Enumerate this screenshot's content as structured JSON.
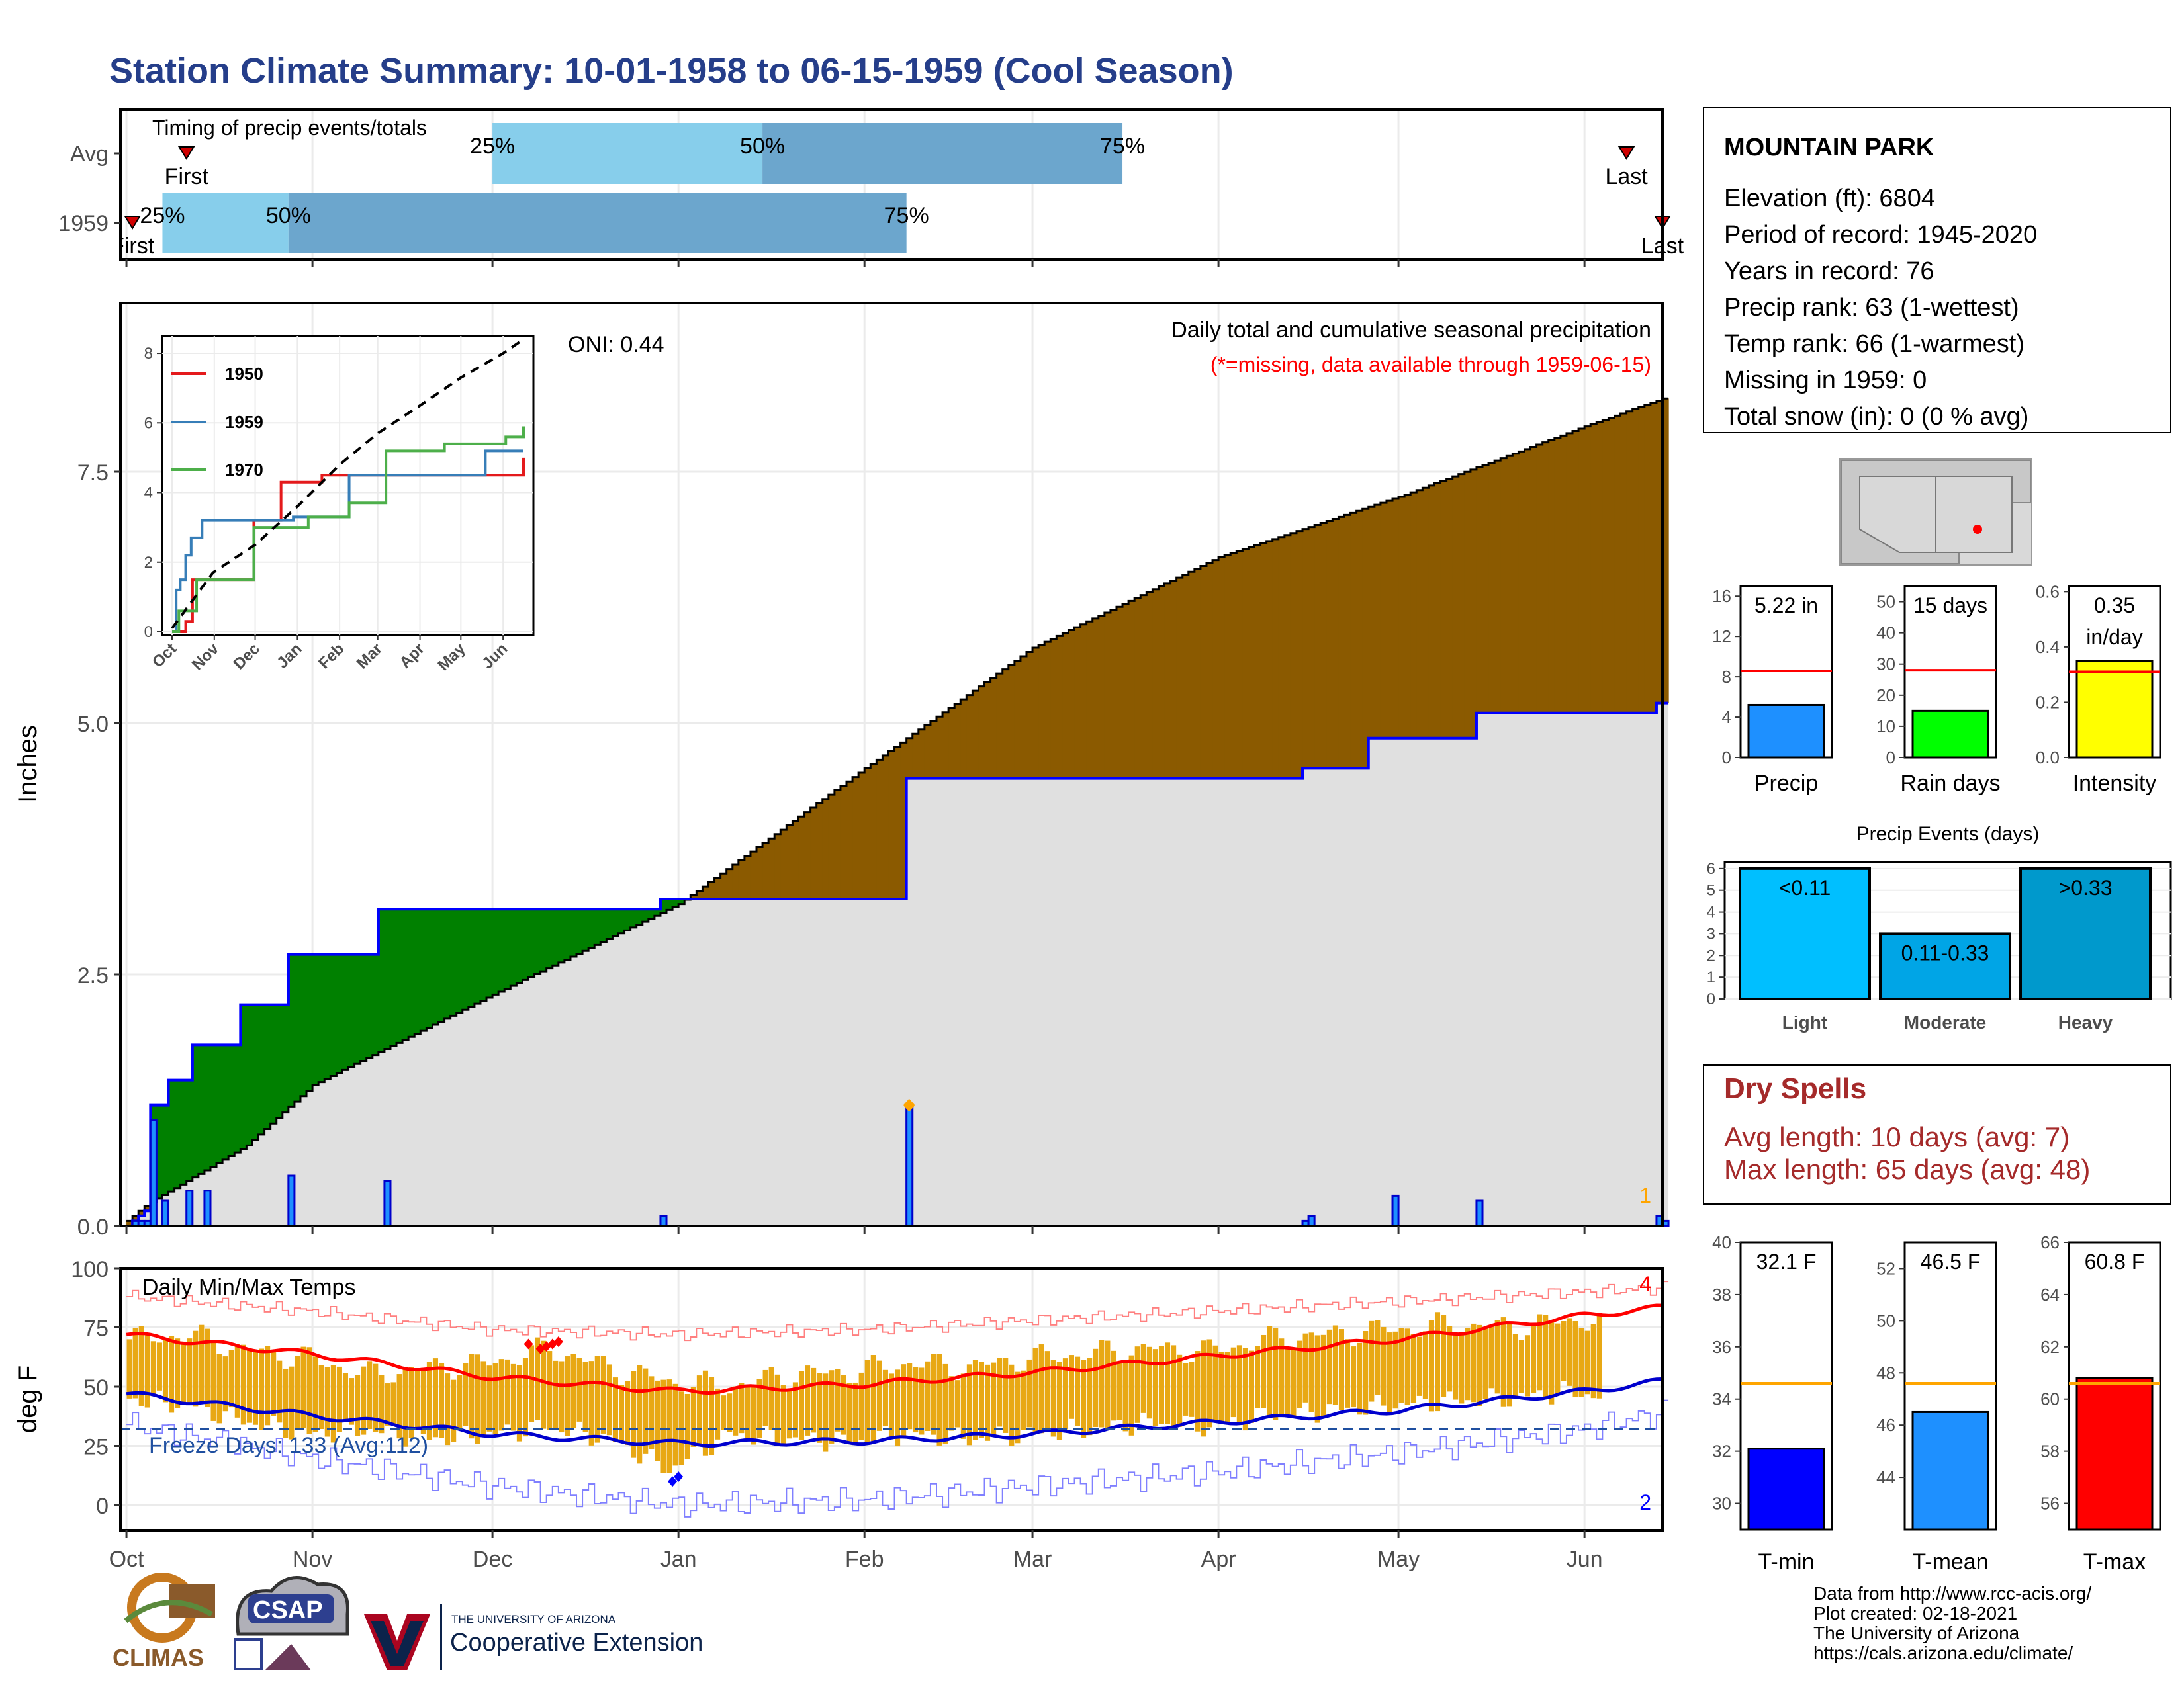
{
  "title": "Station Climate Summary: 10-01-1958 to 06-15-1959 (Cool Season)",
  "station": {
    "name": "MOUNTAIN PARK",
    "lines": [
      "Elevation (ft): 6804",
      "Period of record: 1945-2020",
      "Years in record: 76",
      "Precip rank: 63 (1-wettest)",
      "Temp rank: 66 (1-warmest)",
      "Missing in 1959: 0",
      "Total snow (in): 0 (0 % avg)"
    ]
  },
  "dry_spells": {
    "title": "Dry Spells",
    "avg": "Avg length: 10 days (avg: 7)",
    "max": "Max length: 65 days (avg: 48)"
  },
  "footer": {
    "lines": [
      "Data from http://www.rcc-acis.org/",
      "Plot created: 02-18-2021",
      "The University of Arizona",
      "https://cals.arizona.edu/climate/"
    ],
    "logos": [
      "CLIMAS",
      "CSAP",
      "THE UNIVERSITY OF ARIZONA",
      "Cooperative Extension"
    ]
  },
  "colors": {
    "title": "#253e8a",
    "above_avg": "#8b5a00",
    "below_avg": "#008000",
    "normal_fill": "#e0e0e0",
    "precip_line": "#0000ff",
    "light_blue": "#87ceeb",
    "mid_blue": "#6ca6cd",
    "precip_bar": "#1e90ff",
    "rain_bar": "#00ff00",
    "intensity_bar": "#ffff00",
    "tmin_bar": "#0000ff",
    "tmean_bar": "#1e90ff",
    "tmax_bar": "#ff0000",
    "temp_bar": "#e8a814",
    "dry_spells": "#a52a2a"
  },
  "chart_data": [
    {
      "id": "timing",
      "type": "bar",
      "title": "Timing of precip events/totals",
      "categories": [
        "Avg",
        "1959"
      ],
      "bars": [
        {
          "row": "Avg",
          "q25": "1958-12-01",
          "q50": "1959-01-15",
          "q75": "1959-03-16",
          "first": "1958-10-11",
          "last": "1959-06-08"
        },
        {
          "row": "1959",
          "q25": "1958-10-07",
          "q50": "1958-10-28",
          "q75": "1959-02-08",
          "first": "1958-10-02",
          "last": "1959-06-14"
        }
      ],
      "labels": {
        "q25": "25%",
        "q50": "50%",
        "q75": "75%",
        "first": "First",
        "last": "Last"
      }
    },
    {
      "id": "cumulative",
      "type": "area",
      "title": "Daily total and cumulative seasonal precipitation",
      "subtitle": "(*=missing, data available through 1959-06-15)",
      "ylabel": "Inches",
      "ylim": [
        0,
        9.1
      ],
      "yticks": [
        0.0,
        2.5,
        5.0,
        7.5
      ],
      "x_ticks": [
        "Oct",
        "Nov",
        "Dec",
        "Jan",
        "Feb",
        "Mar",
        "Apr",
        "May",
        "Jun"
      ],
      "oni": "ONI: 0.44",
      "avg_cumulative": {
        "day": [
          0,
          3,
          20,
          31,
          61,
          92,
          123,
          151,
          182,
          212,
          243,
          257
        ],
        "value": [
          0.05,
          0.2,
          0.8,
          1.4,
          2.3,
          3.2,
          4.55,
          5.75,
          6.65,
          7.25,
          7.95,
          8.25
        ]
      },
      "observed_cumulative_steps": {
        "day": [
          0,
          1,
          2,
          3,
          4,
          7,
          11,
          19,
          27,
          42,
          58,
          89,
          130,
          196,
          207,
          225,
          241,
          255,
          257
        ],
        "value": [
          0,
          0.05,
          0.1,
          0.15,
          1.2,
          1.45,
          1.8,
          2.2,
          2.7,
          3.15,
          3.15,
          3.25,
          4.45,
          4.55,
          4.85,
          5.1,
          5.1,
          5.2,
          5.22
        ]
      },
      "daily_precip": {
        "day": [
          1,
          2,
          3,
          4,
          6,
          10,
          13,
          27,
          43,
          89,
          130,
          196,
          197,
          211,
          225,
          255,
          256
        ],
        "value": [
          0.05,
          0.05,
          0.05,
          1.05,
          0.25,
          0.35,
          0.35,
          0.5,
          0.45,
          0.1,
          1.2,
          0.05,
          0.1,
          0.3,
          0.25,
          0.1,
          0.05
        ]
      },
      "missing_marker": {
        "day": 130,
        "value": 1.2
      },
      "corner_label": "1"
    },
    {
      "id": "inset",
      "type": "line",
      "ylim": [
        0,
        8
      ],
      "yticks": [
        0,
        2,
        4,
        6,
        8
      ],
      "x_ticks": [
        "Oct",
        "Nov",
        "Dec",
        "Jan",
        "Feb",
        "Mar",
        "Apr",
        "May",
        "Jun"
      ],
      "series": [
        {
          "name": "1950",
          "day": [
            0,
            10,
            15,
            50,
            60,
            70,
            80,
            95,
            110,
            124,
            258
          ],
          "value": [
            0,
            0.3,
            1.5,
            1.5,
            3.2,
            3.2,
            4.3,
            4.3,
            4.5,
            4.5,
            5.0
          ]
        },
        {
          "name": "1959",
          "day": [
            0,
            3,
            6,
            10,
            14,
            22,
            35,
            60,
            89,
            130,
            196,
            230,
            258
          ],
          "value": [
            0,
            1.2,
            1.5,
            2.2,
            2.7,
            3.2,
            3.2,
            3.2,
            3.3,
            4.5,
            4.5,
            5.2,
            5.2
          ]
        },
        {
          "name": "1970",
          "day": [
            0,
            5,
            18,
            50,
            60,
            100,
            130,
            157,
            200,
            245,
            258
          ],
          "value": [
            0,
            0.6,
            1.5,
            1.5,
            3.0,
            3.3,
            3.7,
            5.2,
            5.4,
            5.6,
            5.9
          ]
        }
      ],
      "avg_line": {
        "day": [
          0,
          30,
          61,
          92,
          123,
          151,
          182,
          212,
          243,
          258
        ],
        "value": [
          0.1,
          1.7,
          2.5,
          3.6,
          4.8,
          5.7,
          6.5,
          7.3,
          8.0,
          8.4
        ]
      }
    },
    {
      "id": "temps",
      "type": "bar",
      "title": "Daily Min/Max Temps",
      "ylabel": "deg F",
      "ylim": [
        -10,
        100
      ],
      "yticks": [
        0,
        25,
        50,
        75,
        100
      ],
      "x_ticks": [
        "Oct",
        "Nov",
        "Dec",
        "Jan",
        "Feb",
        "Mar",
        "Apr",
        "May",
        "Jun"
      ],
      "freeze_text": "Freeze Days: 133 (Avg:112)",
      "freeze_line": 32,
      "avg_max": {
        "day": [
          0,
          30,
          61,
          92,
          123,
          151,
          182,
          212,
          243,
          258
        ],
        "value": [
          72,
          64,
          54,
          48,
          51,
          56,
          63,
          70,
          80,
          84
        ]
      },
      "avg_min": {
        "day": [
          0,
          30,
          61,
          92,
          123,
          151,
          182,
          212,
          243,
          258
        ],
        "value": [
          47,
          38,
          30,
          26,
          27,
          30,
          35,
          40,
          48,
          53
        ]
      },
      "record_max": {
        "day": [
          0,
          30,
          61,
          92,
          123,
          151,
          182,
          212,
          243,
          258
        ],
        "value": [
          88,
          82,
          74,
          72,
          74,
          78,
          82,
          86,
          90,
          92
        ]
      },
      "record_min": {
        "day": [
          0,
          30,
          61,
          92,
          123,
          151,
          182,
          212,
          243,
          258
        ],
        "value": [
          34,
          20,
          8,
          0,
          2,
          8,
          14,
          22,
          32,
          40
        ]
      },
      "daily_max_approx": {
        "day": [
          0,
          10,
          20,
          30,
          40,
          50,
          60,
          70,
          80,
          90,
          100,
          110,
          120,
          130,
          140,
          150,
          160,
          170,
          180,
          190,
          200,
          210,
          220,
          230,
          240,
          245
        ],
        "value": [
          70,
          72,
          65,
          62,
          55,
          58,
          60,
          66,
          58,
          52,
          50,
          55,
          56,
          60,
          58,
          62,
          64,
          66,
          65,
          70,
          72,
          74,
          76,
          75,
          78,
          78
        ]
      },
      "daily_min_approx": {
        "day": [
          0,
          10,
          20,
          30,
          40,
          50,
          60,
          70,
          80,
          90,
          100,
          110,
          120,
          130,
          140,
          150,
          160,
          170,
          180,
          190,
          200,
          210,
          220,
          230,
          240,
          245
        ],
        "value": [
          45,
          42,
          35,
          30,
          32,
          28,
          30,
          33,
          28,
          15,
          30,
          28,
          27,
          30,
          28,
          30,
          32,
          35,
          33,
          38,
          40,
          42,
          44,
          45,
          48,
          46
        ]
      },
      "record_hi_markers": {
        "day": [
          67,
          69,
          70,
          71,
          72
        ],
        "value": [
          68,
          66,
          67,
          68,
          69
        ]
      },
      "record_lo_markers": {
        "day": [
          91,
          92
        ],
        "value": [
          10,
          12
        ]
      },
      "corner_max": "4",
      "corner_min": "2"
    },
    {
      "id": "precip_bar",
      "type": "bar",
      "categories": [
        "Precip"
      ],
      "values": [
        5.22
      ],
      "avg": 8.6,
      "ylim": [
        0,
        17
      ],
      "yticks": [
        0,
        4,
        8,
        12,
        16
      ],
      "label": "5.22 in"
    },
    {
      "id": "rain_days",
      "type": "bar",
      "categories": [
        "Rain days"
      ],
      "values": [
        15
      ],
      "avg": 28,
      "ylim": [
        0,
        55
      ],
      "yticks": [
        0,
        10,
        20,
        30,
        40,
        50
      ],
      "label": "15 days"
    },
    {
      "id": "intensity",
      "type": "bar",
      "categories": [
        "Intensity"
      ],
      "values": [
        0.35
      ],
      "avg": 0.31,
      "ylim": [
        0,
        0.62
      ],
      "yticks": [
        0.0,
        0.2,
        0.4,
        0.6
      ],
      "label": "0.35 in/day"
    },
    {
      "id": "events",
      "type": "bar",
      "title": "Precip Events (days)",
      "categories": [
        "Light",
        "Moderate",
        "Heavy"
      ],
      "values": [
        6,
        3,
        6
      ],
      "labels": [
        "<0.11",
        "0.11-0.33",
        ">0.33"
      ],
      "ylim": [
        0,
        6.3
      ],
      "yticks": [
        0,
        1,
        2,
        3,
        4,
        5,
        6
      ]
    },
    {
      "id": "tmin",
      "type": "bar",
      "categories": [
        "T-min"
      ],
      "values": [
        32.1
      ],
      "avg": 34.6,
      "ylim": [
        29,
        40
      ],
      "yticks": [
        30,
        32,
        34,
        36,
        38,
        40
      ],
      "label": "32.1 F"
    },
    {
      "id": "tmean",
      "type": "bar",
      "categories": [
        "T-mean"
      ],
      "values": [
        46.5
      ],
      "avg": 47.6,
      "ylim": [
        42,
        53
      ],
      "yticks": [
        44,
        46,
        48,
        50,
        52
      ],
      "label": "46.5 F"
    },
    {
      "id": "tmax",
      "type": "bar",
      "categories": [
        "T-max"
      ],
      "values": [
        60.8
      ],
      "avg": 60.6,
      "ylim": [
        55,
        66
      ],
      "yticks": [
        56,
        58,
        60,
        62,
        64,
        66
      ],
      "label": "60.8 F"
    }
  ]
}
